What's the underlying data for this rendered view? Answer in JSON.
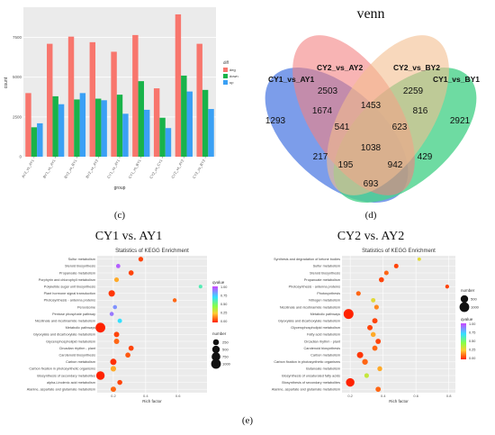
{
  "labels": {
    "panel_c": "(c)",
    "panel_d": "(d)",
    "panel_e": "(e)",
    "venn_title": "venn",
    "kegg_left_title": "CY1 vs. AY1",
    "kegg_right_title": "CY2 vs. AY2"
  },
  "chart_data": [
    {
      "type": "bar",
      "categories": [
        "AY2_vs_AY1",
        "BY1_vs_AY1",
        "BY2_vs_BY1",
        "BY2_vs_AY2",
        "CY1_vs_AY1",
        "CY1_vs_BY1",
        "CY2_vs_CY1",
        "CY2_vs_AY2",
        "CY2_vs_BY2"
      ],
      "series": [
        {
          "name": "deg",
          "color": "#f8766d",
          "values": [
            4000,
            7100,
            7550,
            7200,
            6600,
            7650,
            4300,
            8950,
            7100
          ]
        },
        {
          "name": "down",
          "color": "#19b34a",
          "values": [
            1850,
            3800,
            3600,
            3650,
            3900,
            4750,
            2450,
            5100,
            4200
          ]
        },
        {
          "name": "up",
          "color": "#3aa0f5",
          "values": [
            2100,
            3300,
            4000,
            3550,
            2700,
            2950,
            1800,
            4100,
            3000
          ]
        }
      ],
      "xlabel": "group",
      "ylabel": "count",
      "legend_title": "diff",
      "yticks": [
        "0",
        "2500",
        "5000",
        "7500"
      ],
      "ylim": [
        0,
        9400
      ]
    },
    {
      "type": "venn",
      "title": "venn",
      "sets": [
        {
          "name": "CY1_vs_AY1",
          "color": "#3f6fe0"
        },
        {
          "name": "CY2_vs_AY2",
          "color": "#f06a6a"
        },
        {
          "name": "CY2_vs_BY2",
          "color": "#f2b27c"
        },
        {
          "name": "CY1_vs_BY1",
          "color": "#2bcb77"
        }
      ],
      "regions": [
        {
          "label": "1293"
        },
        {
          "label": "2503"
        },
        {
          "label": "2259"
        },
        {
          "label": "2921"
        },
        {
          "label": "1674"
        },
        {
          "label": "1453"
        },
        {
          "label": "816"
        },
        {
          "label": "541"
        },
        {
          "label": "623"
        },
        {
          "label": "1038"
        },
        {
          "label": "217"
        },
        {
          "label": "429"
        },
        {
          "label": "195"
        },
        {
          "label": "942"
        },
        {
          "label": "693"
        }
      ]
    },
    {
      "type": "scatter",
      "title": "Statistics of KEGG Enrichment",
      "xlabel": "Rich factor",
      "xticks": [
        "0.2",
        "0.4",
        "0.6"
      ],
      "xlim": [
        0.1,
        0.78
      ],
      "categories": [
        "Sulfur metabolism",
        "Steroid biosynthesis",
        "Propanoate metabolism",
        "Porphyrin and chlorophyll metabolism",
        "Polyketide sugar unit biosynthesis",
        "Plant hormone signal transduction",
        "Photosynthesis - antenna proteins",
        "Peroxisome",
        "Pentose phosphate pathway",
        "Nicotinate and nicotinamide metabolism",
        "Metabolic pathways",
        "Glyoxylate and dicarboxylate metabolism",
        "Glycerophospholipid metabolism",
        "Circadian rhythm - plant",
        "Carotenoid biosynthesis",
        "Carbon metabolism",
        "Carbon fixation in photosynthetic organisms",
        "Biosynthesis of secondary metabolites",
        "alpha-Linolenic acid metabolism",
        "Alanine, aspartate and glutamate metabolism"
      ],
      "points": [
        {
          "x": 0.37,
          "q": 0.05,
          "n": 120
        },
        {
          "x": 0.23,
          "q": 0.95,
          "n": 80
        },
        {
          "x": 0.31,
          "q": 0.05,
          "n": 150
        },
        {
          "x": 0.22,
          "q": 0.2,
          "n": 110
        },
        {
          "x": 0.74,
          "q": 0.6,
          "n": 40
        },
        {
          "x": 0.19,
          "q": 0.03,
          "n": 320
        },
        {
          "x": 0.58,
          "q": 0.1,
          "n": 60
        },
        {
          "x": 0.21,
          "q": 0.85,
          "n": 70
        },
        {
          "x": 0.19,
          "q": 0.9,
          "n": 70
        },
        {
          "x": 0.24,
          "q": 0.7,
          "n": 90
        },
        {
          "x": 0.12,
          "q": 0.0,
          "n": 1000
        },
        {
          "x": 0.22,
          "q": 0.05,
          "n": 180
        },
        {
          "x": 0.22,
          "q": 0.1,
          "n": 180
        },
        {
          "x": 0.31,
          "q": 0.05,
          "n": 160
        },
        {
          "x": 0.29,
          "q": 0.08,
          "n": 150
        },
        {
          "x": 0.2,
          "q": 0.02,
          "n": 300
        },
        {
          "x": 0.2,
          "q": 0.2,
          "n": 200
        },
        {
          "x": 0.12,
          "q": 0.0,
          "n": 700
        },
        {
          "x": 0.24,
          "q": 0.05,
          "n": 140
        },
        {
          "x": 0.2,
          "q": 0.1,
          "n": 180
        }
      ],
      "legend_color_title": "qvalue",
      "legend_color_ticks": [
        "1.00",
        "0.75",
        "0.50",
        "0.25",
        "0.00"
      ],
      "legend_size_title": "number",
      "legend_size_values": [
        "250",
        "500",
        "750",
        "1000"
      ],
      "legend_size_numbers": [
        250,
        500,
        750,
        1000
      ]
    },
    {
      "type": "scatter",
      "title": "Statistics of KEGG Enrichment",
      "xlabel": "Rich factor",
      "xticks": [
        "0.2",
        "0.4",
        "0.6",
        "0.8"
      ],
      "xlim": [
        0.15,
        0.84
      ],
      "categories": [
        "Synthesis and degradation of ketone bodies",
        "Sulfur metabolism",
        "Steroid biosynthesis",
        "Propanoate metabolism",
        "Photosynthesis - antenna proteins",
        "Photosynthesis",
        "Nitrogen metabolism",
        "Nicotinate and nicotinamide metabolism",
        "Metabolic pathways",
        "Glyoxylate and dicarboxylate metabolism",
        "Glycerophospholipid metabolism",
        "Fatty acid metabolism",
        "Circadian rhythm - plant",
        "Carotenoid biosynthesis",
        "Carbon metabolism",
        "Carbon fixation in photosynthetic organisms",
        "Butanoate metabolism",
        "Biosynthesis of unsaturated fatty acids",
        "Biosynthesis of secondary metabolites",
        "Alanine, aspartate and glutamate metabolism"
      ],
      "points": [
        {
          "x": 0.62,
          "q": 0.3,
          "n": 30
        },
        {
          "x": 0.48,
          "q": 0.05,
          "n": 100
        },
        {
          "x": 0.42,
          "q": 0.1,
          "n": 100
        },
        {
          "x": 0.39,
          "q": 0.05,
          "n": 150
        },
        {
          "x": 0.79,
          "q": 0.05,
          "n": 50
        },
        {
          "x": 0.25,
          "q": 0.1,
          "n": 110
        },
        {
          "x": 0.34,
          "q": 0.3,
          "n": 90
        },
        {
          "x": 0.36,
          "q": 0.15,
          "n": 110
        },
        {
          "x": 0.19,
          "q": 0.0,
          "n": 1050
        },
        {
          "x": 0.35,
          "q": 0.05,
          "n": 180
        },
        {
          "x": 0.32,
          "q": 0.05,
          "n": 180
        },
        {
          "x": 0.34,
          "q": 0.2,
          "n": 140
        },
        {
          "x": 0.37,
          "q": 0.05,
          "n": 170
        },
        {
          "x": 0.35,
          "q": 0.1,
          "n": 170
        },
        {
          "x": 0.26,
          "q": 0.03,
          "n": 300
        },
        {
          "x": 0.29,
          "q": 0.1,
          "n": 220
        },
        {
          "x": 0.38,
          "q": 0.2,
          "n": 130
        },
        {
          "x": 0.3,
          "q": 0.35,
          "n": 110
        },
        {
          "x": 0.2,
          "q": 0.0,
          "n": 700
        },
        {
          "x": 0.37,
          "q": 0.1,
          "n": 160
        }
      ],
      "legend_color_title": "qvalue",
      "legend_color_ticks": [
        "1.00",
        "0.75",
        "0.50",
        "0.25",
        "0.00"
      ],
      "legend_size_title": "number",
      "legend_size_values": [
        "500",
        "1000"
      ],
      "legend_size_numbers": [
        500,
        1000
      ]
    }
  ]
}
